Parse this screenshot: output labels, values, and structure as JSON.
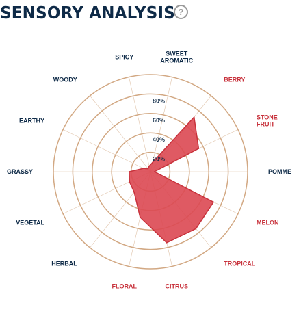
{
  "header": {
    "title": "SENSORY ANALYSIS",
    "help_symbol": "?"
  },
  "colors": {
    "navy": "#0e2a47",
    "red": "#c8323c",
    "grid": "#d2a883",
    "fill": "#dc4852"
  },
  "chart_data": {
    "type": "radar",
    "title": "SENSORY ANALYSIS",
    "rlim": [
      0,
      100
    ],
    "ticks": [
      "20%",
      "40%",
      "60%",
      "80%"
    ],
    "tick_values": [
      20,
      40,
      60,
      80
    ],
    "categories": [
      {
        "label": [
          "SWEET",
          "AROMATIC"
        ],
        "value": 10,
        "highlight": false
      },
      {
        "label": [
          "BERRY"
        ],
        "value": 72,
        "highlight": true
      },
      {
        "label": [
          "STONE",
          "FRUIT"
        ],
        "value": 55,
        "highlight": true
      },
      {
        "label": [
          "POMME"
        ],
        "value": 4,
        "highlight": false
      },
      {
        "label": [
          "MELON"
        ],
        "value": 72,
        "highlight": true
      },
      {
        "label": [
          "TROPICAL"
        ],
        "value": 75,
        "highlight": true
      },
      {
        "label": [
          "CITRUS"
        ],
        "value": 75,
        "highlight": true
      },
      {
        "label": [
          "FLORAL"
        ],
        "value": 48,
        "highlight": true
      },
      {
        "label": [
          "HERBAL"
        ],
        "value": 27,
        "highlight": false
      },
      {
        "label": [
          "VEGETAL"
        ],
        "value": 24,
        "highlight": false
      },
      {
        "label": [
          "GRASSY"
        ],
        "value": 22,
        "highlight": false
      },
      {
        "label": [
          "EARTHY"
        ],
        "value": 8,
        "highlight": false
      },
      {
        "label": [
          "WOODY"
        ],
        "value": 4,
        "highlight": false
      },
      {
        "label": [
          "SPICY"
        ],
        "value": 6,
        "highlight": false
      }
    ]
  }
}
